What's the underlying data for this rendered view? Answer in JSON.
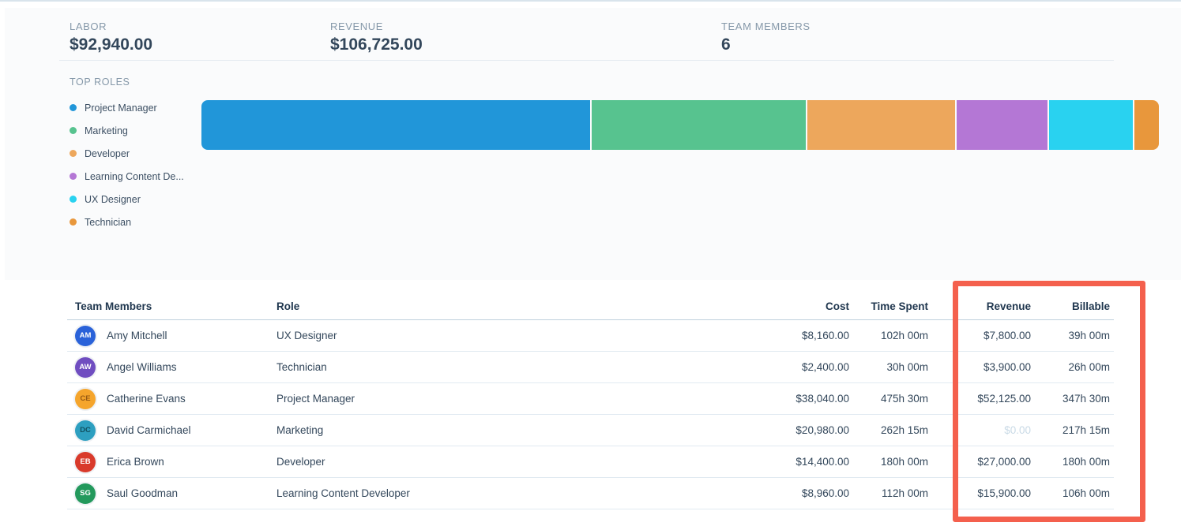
{
  "stats": [
    {
      "label": "LABOR",
      "value": "$92,940.00"
    },
    {
      "label": "REVENUE",
      "value": "$106,725.00"
    },
    {
      "label": "TEAM MEMBERS",
      "value": "6"
    }
  ],
  "top_roles": {
    "title": "TOP ROLES",
    "legend": [
      {
        "label": "Project Manager",
        "color": "#2196d9"
      },
      {
        "label": "Marketing",
        "color": "#57c38f"
      },
      {
        "label": "Developer",
        "color": "#eda75c"
      },
      {
        "label": "Learning Content De...",
        "color": "#b477d5"
      },
      {
        "label": "UX Designer",
        "color": "#29d2f0"
      },
      {
        "label": "Technician",
        "color": "#e8973c"
      }
    ]
  },
  "chart_data": {
    "type": "bar",
    "title": "TOP ROLES",
    "orientation": "horizontal-stacked",
    "unit": "labor cost ($)",
    "total": 92940,
    "segments": [
      {
        "label": "Project Manager",
        "value": 38040,
        "percent": 40.9,
        "color": "#2196d9"
      },
      {
        "label": "Marketing",
        "value": 20980,
        "percent": 22.6,
        "color": "#57c38f"
      },
      {
        "label": "Developer",
        "value": 14400,
        "percent": 15.5,
        "color": "#eda75c"
      },
      {
        "label": "Learning Content Developer",
        "value": 8960,
        "percent": 9.6,
        "color": "#b477d5"
      },
      {
        "label": "UX Designer",
        "value": 8160,
        "percent": 8.8,
        "color": "#29d2f0"
      },
      {
        "label": "Technician",
        "value": 2400,
        "percent": 2.6,
        "color": "#e8973c"
      }
    ]
  },
  "table": {
    "columns": [
      "Team Members",
      "Role",
      "Cost",
      "Time Spent",
      "Revenue",
      "Billable"
    ],
    "rows": [
      {
        "initials": "AM",
        "avatar_color": "#2a62d9",
        "initials_color": "#ffffff",
        "name": "Amy Mitchell",
        "role": "UX Designer",
        "cost": "$8,160.00",
        "time_spent": "102h 00m",
        "revenue": "$7,800.00",
        "revenue_muted": false,
        "billable": "39h 00m"
      },
      {
        "initials": "AW",
        "avatar_color": "#6f4dc0",
        "initials_color": "#ffffff",
        "name": "Angel Williams",
        "role": "Technician",
        "cost": "$2,400.00",
        "time_spent": "30h 00m",
        "revenue": "$3,900.00",
        "revenue_muted": false,
        "billable": "26h 00m"
      },
      {
        "initials": "CE",
        "avatar_color": "#f5a52c",
        "initials_color": "#975a14",
        "name": "Catherine Evans",
        "role": "Project Manager",
        "cost": "$38,040.00",
        "time_spent": "475h 30m",
        "revenue": "$52,125.00",
        "revenue_muted": false,
        "billable": "347h 30m"
      },
      {
        "initials": "DC",
        "avatar_color": "#2d9fc0",
        "initials_color": "#11505f",
        "name": "David Carmichael",
        "role": "Marketing",
        "cost": "$20,980.00",
        "time_spent": "262h 15m",
        "revenue": "$0.00",
        "revenue_muted": true,
        "billable": "217h 15m"
      },
      {
        "initials": "EB",
        "avatar_color": "#d93a2b",
        "initials_color": "#ffffff",
        "name": "Erica Brown",
        "role": "Developer",
        "cost": "$14,400.00",
        "time_spent": "180h 00m",
        "revenue": "$27,000.00",
        "revenue_muted": false,
        "billable": "180h 00m"
      },
      {
        "initials": "SG",
        "avatar_color": "#23995c",
        "initials_color": "#ffffff",
        "name": "Saul Goodman",
        "role": "Learning Content Developer",
        "cost": "$8,960.00",
        "time_spent": "112h 00m",
        "revenue": "$15,900.00",
        "revenue_muted": false,
        "billable": "106h 00m"
      }
    ]
  },
  "highlight": {
    "color": "#f4604d",
    "note": "red rectangle around Revenue and Billable columns"
  }
}
